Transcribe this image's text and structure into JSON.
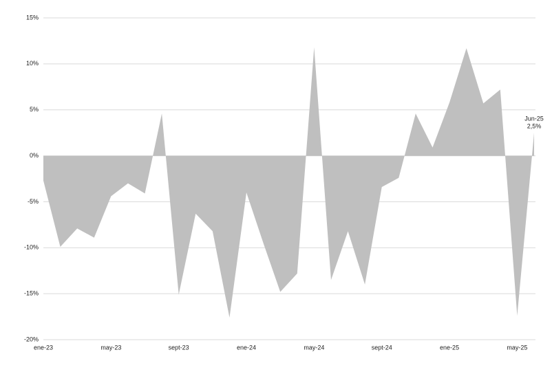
{
  "chart_data": {
    "type": "area",
    "categories": [
      "ene-23",
      null,
      null,
      null,
      "may-23",
      null,
      null,
      null,
      "sept-23",
      null,
      null,
      null,
      "ene-24",
      null,
      null,
      null,
      "may-24",
      null,
      null,
      null,
      "sept-24",
      null,
      null,
      null,
      "ene-25",
      null,
      null,
      null,
      "may-25",
      null
    ],
    "values": [
      -2.7,
      -9.9,
      -7.9,
      -8.9,
      -4.4,
      -3.0,
      -4.1,
      4.6,
      -15.1,
      -6.3,
      -8.2,
      -17.6,
      -4.0,
      -9.5,
      -14.8,
      -12.8,
      11.8,
      -13.5,
      -8.2,
      -14.0,
      -3.4,
      -2.4,
      4.6,
      0.9,
      5.8,
      11.7,
      5.7,
      7.2,
      -17.4,
      2.5
    ],
    "value_labels": [
      null,
      null,
      null,
      null,
      null,
      null,
      null,
      null,
      null,
      null,
      null,
      null,
      null,
      null,
      null,
      null,
      null,
      null,
      null,
      null,
      null,
      null,
      null,
      null,
      null,
      null,
      null,
      null,
      null,
      "2,5%"
    ],
    "annotation": "Jun-25",
    "color": "#bfbfbf",
    "ylim": [
      -20,
      15
    ],
    "yticks": [
      {
        "value": -20,
        "label": "-20%"
      },
      {
        "value": -15,
        "label": "-15%"
      },
      {
        "value": -10,
        "label": "-10%"
      },
      {
        "value": -5,
        "label": "-5%"
      },
      {
        "value": 0,
        "label": "0%"
      },
      {
        "value": 5,
        "label": "5%"
      },
      {
        "value": 10,
        "label": "10%"
      },
      {
        "value": 15,
        "label": "15%"
      }
    ],
    "grid": true
  }
}
